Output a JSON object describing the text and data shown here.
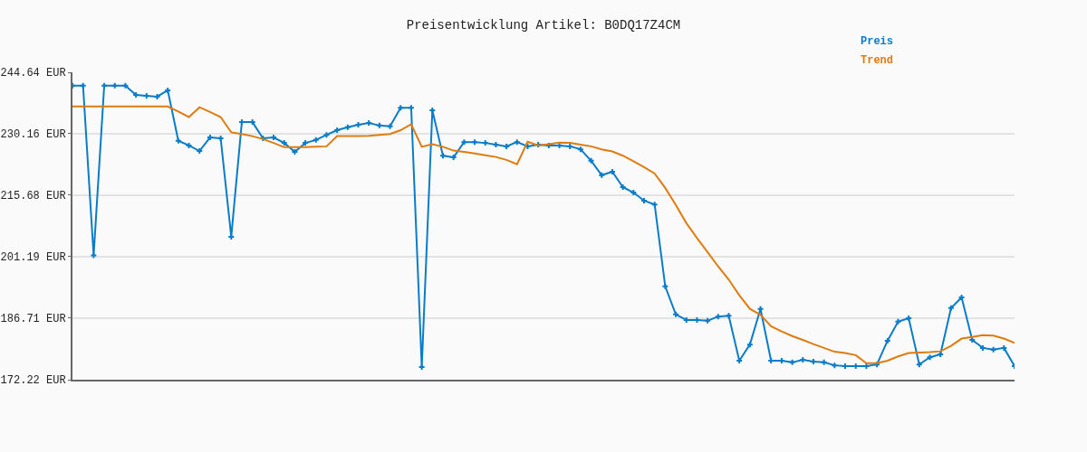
{
  "chart_data": {
    "type": "line",
    "title": "Preisentwicklung Artikel: B0DQ17Z4CM",
    "categories": [
      null,
      null,
      null,
      null,
      null,
      null,
      null,
      null,
      null,
      null,
      null,
      null,
      null,
      null,
      null,
      null,
      null,
      null,
      null,
      null,
      null,
      null,
      null,
      null,
      null,
      null,
      null,
      null,
      null,
      null,
      null,
      null,
      null,
      null,
      null,
      null,
      null,
      null,
      null,
      null,
      null,
      null,
      null,
      null,
      null,
      null,
      null,
      null,
      null,
      null,
      null,
      null,
      null,
      null,
      null,
      null,
      null,
      null,
      null,
      null,
      null,
      null,
      null,
      null,
      null,
      null,
      null,
      null,
      null,
      null,
      null,
      null,
      null,
      null,
      null,
      null,
      null,
      null,
      null,
      null,
      null,
      null,
      null,
      null,
      null,
      null,
      null,
      null,
      null,
      null
    ],
    "series": [
      {
        "name": "Preis",
        "color": "#0a7cc8",
        "marker": "cross",
        "values": [
          241.5,
          241.5,
          201.5,
          241.5,
          241.5,
          241.5,
          239.3,
          239.1,
          238.9,
          240.4,
          228.5,
          227.4,
          226.1,
          229.3,
          229.1,
          205.9,
          232.9,
          232.9,
          229.1,
          229.3,
          228.0,
          225.9,
          228.0,
          228.7,
          229.9,
          231.0,
          231.7,
          232.3,
          232.7,
          232.1,
          231.9,
          236.3,
          236.3,
          175.2,
          235.7,
          225.0,
          224.6,
          228.2,
          228.2,
          228.0,
          227.6,
          227.2,
          228.2,
          227.2,
          227.6,
          227.4,
          227.4,
          227.2,
          226.5,
          223.8,
          220.4,
          221.2,
          217.6,
          216.3,
          214.4,
          213.5,
          194.2,
          187.6,
          186.3,
          186.3,
          186.1,
          187.1,
          187.3,
          176.7,
          180.5,
          188.9,
          176.7,
          176.7,
          176.3,
          176.9,
          176.5,
          176.3,
          175.6,
          175.4,
          175.4,
          175.4,
          175.8,
          181.4,
          185.9,
          186.7,
          175.8,
          177.5,
          178.2,
          189.1,
          191.6,
          181.6,
          179.7,
          179.3,
          179.7,
          175.4
        ]
      },
      {
        "name": "Trend",
        "color": "#e07b0f",
        "marker": "none",
        "values": [
          236.6,
          236.6,
          236.6,
          236.6,
          236.6,
          236.6,
          236.6,
          236.6,
          236.6,
          236.6,
          235.4,
          234.1,
          236.4,
          235.3,
          234.1,
          230.5,
          230.1,
          229.6,
          228.9,
          228.0,
          227.0,
          227.0,
          227.0,
          227.1,
          227.2,
          229.6,
          229.6,
          229.6,
          229.7,
          229.9,
          230.1,
          231.0,
          232.4,
          227.1,
          227.7,
          227.1,
          226.2,
          225.9,
          225.5,
          225.1,
          224.7,
          224.0,
          223.0,
          228.3,
          227.4,
          227.7,
          228.1,
          228.0,
          227.6,
          227.2,
          226.5,
          226.0,
          225.0,
          223.7,
          222.3,
          220.8,
          217.4,
          213.4,
          209.1,
          205.6,
          202.3,
          198.9,
          195.8,
          192.1,
          188.9,
          187.5,
          184.8,
          183.6,
          182.5,
          181.6,
          180.6,
          179.7,
          178.8,
          178.5,
          178.0,
          176.1,
          176.1,
          176.7,
          177.7,
          178.5,
          178.6,
          178.7,
          178.9,
          180.2,
          181.9,
          182.3,
          182.7,
          182.6,
          181.9,
          180.9
        ]
      }
    ],
    "ylim": [
      172.22,
      244.64
    ],
    "yticks": [
      {
        "value": 172.22,
        "label": "172.22 EUR"
      },
      {
        "value": 186.71,
        "label": "186.71 EUR"
      },
      {
        "value": 201.19,
        "label": "201.19 EUR"
      },
      {
        "value": 215.68,
        "label": "215.68 EUR"
      },
      {
        "value": 230.16,
        "label": "230.16 EUR"
      },
      {
        "value": 244.64,
        "label": "244.64 EUR"
      }
    ],
    "grid": "y",
    "legend": "top right",
    "line_style": "solid"
  }
}
